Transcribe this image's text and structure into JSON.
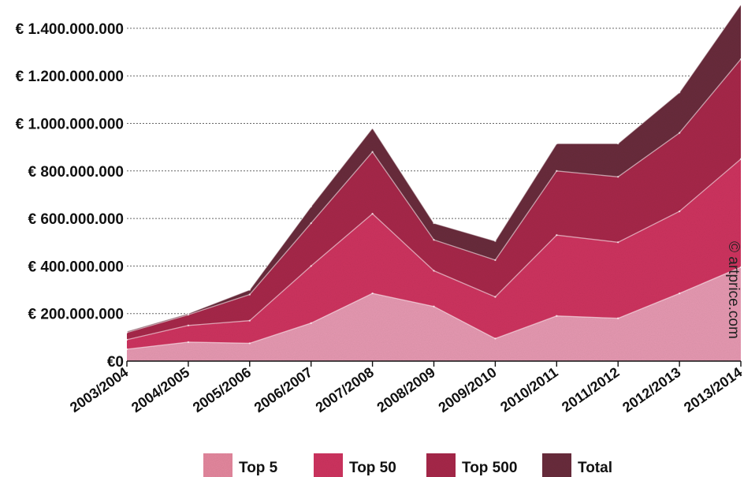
{
  "chart_data": {
    "type": "area",
    "stacked": false,
    "categories": [
      "2003/2004",
      "2004/2005",
      "2005/2006",
      "2006/2007",
      "2007/2008",
      "2008/2009",
      "2009/2010",
      "2010/2011",
      "2011/2012",
      "2012/2013",
      "2013/2014"
    ],
    "series": [
      {
        "name": "Total",
        "color": "#6a2d3c",
        "values": [
          125000000,
          200000000,
          300000000,
          650000000,
          980000000,
          580000000,
          505000000,
          915000000,
          915000000,
          1130000000,
          1500000000
        ]
      },
      {
        "name": "Top 500",
        "color": "#a82a4c",
        "values": [
          120000000,
          195000000,
          280000000,
          580000000,
          880000000,
          510000000,
          425000000,
          800000000,
          775000000,
          960000000,
          1270000000
        ]
      },
      {
        "name": "Top 50",
        "color": "#cf3560",
        "values": [
          90000000,
          150000000,
          170000000,
          400000000,
          620000000,
          380000000,
          270000000,
          530000000,
          500000000,
          630000000,
          850000000
        ]
      },
      {
        "name": "Top 5",
        "color": "#e79ab2",
        "values": [
          50000000,
          80000000,
          75000000,
          160000000,
          285000000,
          230000000,
          95000000,
          190000000,
          180000000,
          285000000,
          395000000
        ]
      }
    ],
    "y_ticks": [
      "€0",
      "€ 200.000.000",
      "€ 400.000.000",
      "€ 600.000.000",
      "€ 800.000.000",
      "€ 1.000.000.000",
      "€ 1.200.000.000",
      "€ 1.400.000.000"
    ],
    "ylim": [
      0,
      1500000000
    ],
    "grid": true,
    "legend": [
      "Top 5",
      "Top 50",
      "Top 500",
      "Total"
    ],
    "legend_position": "bottom",
    "watermark": "© artprice.com"
  }
}
